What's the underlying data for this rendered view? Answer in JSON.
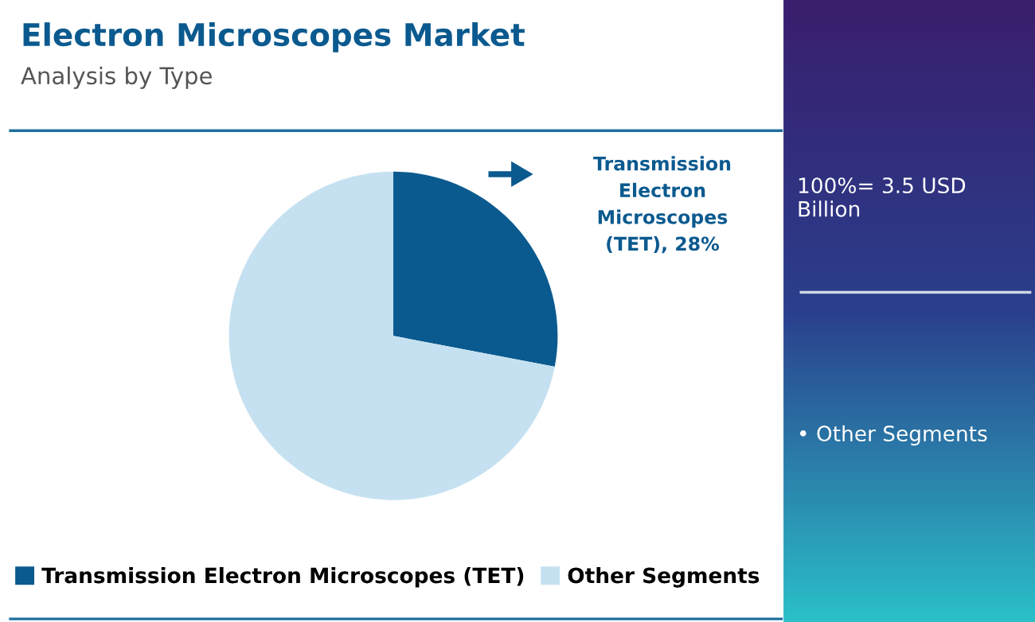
{
  "chart_data": {
    "type": "pie",
    "title": "Electron Microscopes Market",
    "subtitle": "Analysis by Type",
    "categories": [
      "Transmission Electron Microscopes (TET)",
      "Other Segments"
    ],
    "values": [
      28,
      72
    ],
    "colors": [
      "#0b5a8f",
      "#c5e1f1"
    ],
    "value_labels": [
      "Transmission Electron Microscopes (TET), 28%",
      null
    ],
    "legend": "bottom",
    "annotations": [
      "100%= 3.5 USD Billion",
      "• Other Segments"
    ]
  }
}
